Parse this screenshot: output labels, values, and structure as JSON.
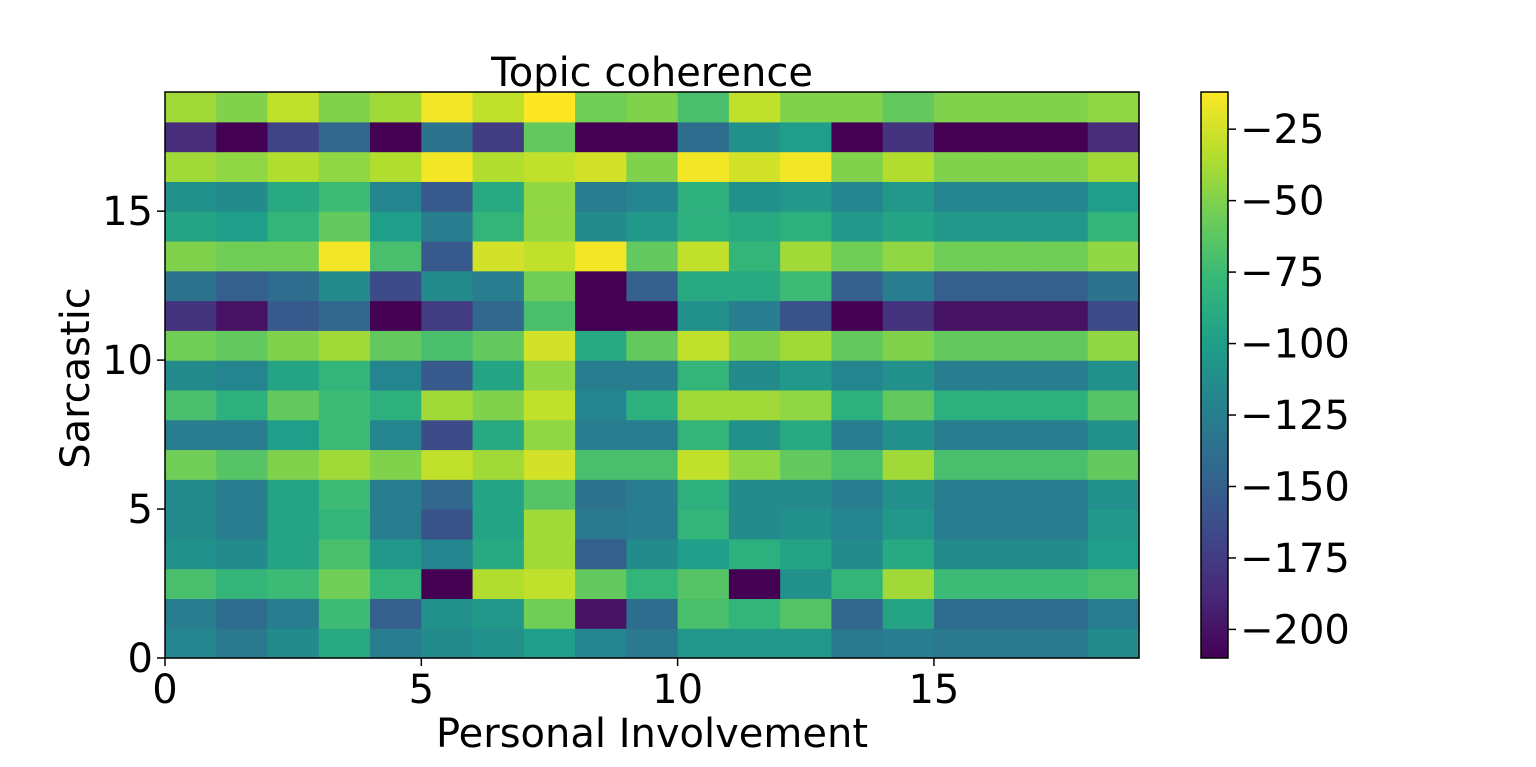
{
  "chart_data": {
    "type": "heatmap",
    "title": "Topic coherence",
    "xlabel": "Personal Involvement",
    "ylabel": "Sarcastic",
    "xlim": [
      0,
      19
    ],
    "ylim": [
      0,
      19
    ],
    "x_ticks": [
      "0",
      "5",
      "10",
      "15"
    ],
    "y_ticks": [
      "0",
      "5",
      "10",
      "15"
    ],
    "colorbar": {
      "colormap": "viridis",
      "vmin": -210,
      "vmax": -12,
      "ticks": [
        "−200",
        "−175",
        "−150",
        "−125",
        "−100",
        "−75",
        "−50",
        "−25"
      ],
      "tick_values": [
        -200,
        -175,
        -150,
        -125,
        -100,
        -75,
        -50,
        -25
      ]
    },
    "grid": false,
    "rows_bottom_to_top": [
      [
        -120,
        -130,
        -115,
        -90,
        -125,
        -115,
        -110,
        -100,
        -120,
        -130,
        -105,
        -105,
        -105,
        -130,
        -125,
        -130,
        -130,
        -130,
        -115
      ],
      [
        -125,
        -140,
        -125,
        -75,
        -150,
        -110,
        -105,
        -55,
        -200,
        -140,
        -70,
        -80,
        -65,
        -145,
        -95,
        -140,
        -140,
        -140,
        -125
      ],
      [
        -70,
        -80,
        -75,
        -55,
        -80,
        -210,
        -35,
        -30,
        -60,
        -80,
        -65,
        -210,
        -110,
        -80,
        -40,
        -75,
        -75,
        -75,
        -70
      ],
      [
        -110,
        -115,
        -95,
        -70,
        -105,
        -120,
        -90,
        -40,
        -150,
        -115,
        -100,
        -85,
        -95,
        -115,
        -90,
        -115,
        -115,
        -115,
        -100
      ],
      [
        -115,
        -125,
        -95,
        -80,
        -125,
        -160,
        -95,
        -40,
        -130,
        -125,
        -80,
        -115,
        -110,
        -120,
        -105,
        -125,
        -125,
        -125,
        -105
      ],
      [
        -115,
        -125,
        -95,
        -75,
        -125,
        -145,
        -95,
        -65,
        -135,
        -125,
        -85,
        -115,
        -115,
        -125,
        -110,
        -125,
        -125,
        -125,
        -110
      ],
      [
        -55,
        -65,
        -50,
        -40,
        -50,
        -30,
        -40,
        -25,
        -70,
        -70,
        -30,
        -45,
        -60,
        -70,
        -40,
        -70,
        -70,
        -70,
        -60
      ],
      [
        -125,
        -125,
        -100,
        -75,
        -120,
        -165,
        -90,
        -45,
        -125,
        -125,
        -80,
        -110,
        -90,
        -125,
        -110,
        -125,
        -125,
        -125,
        -110
      ],
      [
        -70,
        -85,
        -60,
        -75,
        -85,
        -40,
        -50,
        -30,
        -120,
        -85,
        -40,
        -40,
        -45,
        -85,
        -60,
        -85,
        -85,
        -85,
        -65
      ],
      [
        -115,
        -120,
        -95,
        -80,
        -120,
        -155,
        -95,
        -45,
        -125,
        -125,
        -80,
        -115,
        -105,
        -120,
        -110,
        -125,
        -125,
        -125,
        -110
      ],
      [
        -55,
        -60,
        -50,
        -40,
        -60,
        -70,
        -60,
        -25,
        -90,
        -60,
        -30,
        -50,
        -40,
        -60,
        -50,
        -60,
        -60,
        -60,
        -45
      ],
      [
        -180,
        -200,
        -155,
        -145,
        -210,
        -175,
        -145,
        -70,
        -210,
        -210,
        -110,
        -125,
        -160,
        -210,
        -180,
        -200,
        -200,
        -200,
        -165
      ],
      [
        -135,
        -150,
        -140,
        -115,
        -165,
        -115,
        -125,
        -55,
        -210,
        -150,
        -90,
        -90,
        -75,
        -150,
        -125,
        -150,
        -150,
        -150,
        -135
      ],
      [
        -50,
        -55,
        -55,
        -15,
        -70,
        -155,
        -25,
        -30,
        -15,
        -60,
        -30,
        -80,
        -40,
        -55,
        -45,
        -55,
        -55,
        -55,
        -45
      ],
      [
        -95,
        -100,
        -80,
        -60,
        -100,
        -125,
        -80,
        -45,
        -115,
        -105,
        -85,
        -90,
        -85,
        -105,
        -95,
        -105,
        -105,
        -105,
        -80
      ],
      [
        -110,
        -115,
        -90,
        -75,
        -120,
        -155,
        -90,
        -45,
        -125,
        -120,
        -85,
        -110,
        -105,
        -120,
        -105,
        -120,
        -120,
        -120,
        -100
      ],
      [
        -40,
        -45,
        -35,
        -45,
        -35,
        -15,
        -35,
        -30,
        -25,
        -50,
        -15,
        -25,
        -15,
        -50,
        -35,
        -50,
        -50,
        -50,
        -40
      ],
      [
        -185,
        -210,
        -170,
        -145,
        -210,
        -135,
        -175,
        -60,
        -210,
        -210,
        -140,
        -110,
        -100,
        -210,
        -180,
        -210,
        -210,
        -210,
        -185
      ],
      [
        -40,
        -50,
        -30,
        -50,
        -40,
        -15,
        -30,
        -10,
        -55,
        -50,
        -70,
        -30,
        -50,
        -50,
        -60,
        -50,
        -50,
        -50,
        -45
      ]
    ]
  }
}
